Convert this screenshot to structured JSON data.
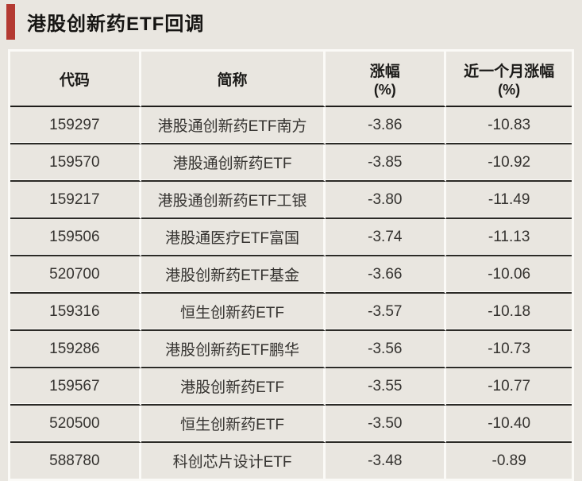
{
  "title": "港股创新药ETF回调",
  "colors": {
    "accent_bar": "#b43a32",
    "background": "#e9e6e0",
    "divider_white": "#fbfaf7",
    "row_rule": "#2b2a26",
    "text": "#353330"
  },
  "table": {
    "headers": [
      {
        "label": "代码",
        "sub": ""
      },
      {
        "label": "简称",
        "sub": ""
      },
      {
        "label": "涨幅",
        "sub": "(%)"
      },
      {
        "label": "近一个月涨幅",
        "sub": "(%)"
      }
    ]
  },
  "chart_data": {
    "type": "table",
    "title": "港股创新药ETF回调",
    "columns": [
      "代码",
      "简称",
      "涨幅(%)",
      "近一个月涨幅(%)"
    ],
    "rows": [
      [
        "159297",
        "港股通创新药ETF南方",
        "-3.86",
        "-10.83"
      ],
      [
        "159570",
        "港股通创新药ETF",
        "-3.85",
        "-10.92"
      ],
      [
        "159217",
        "港股通创新药ETF工银",
        "-3.80",
        "-11.49"
      ],
      [
        "159506",
        "港股通医疗ETF富国",
        "-3.74",
        "-11.13"
      ],
      [
        "520700",
        "港股创新药ETF基金",
        "-3.66",
        "-10.06"
      ],
      [
        "159316",
        "恒生创新药ETF",
        "-3.57",
        "-10.18"
      ],
      [
        "159286",
        "港股创新药ETF鹏华",
        "-3.56",
        "-10.73"
      ],
      [
        "159567",
        "港股创新药ETF",
        "-3.55",
        "-10.77"
      ],
      [
        "520500",
        "恒生创新药ETF",
        "-3.50",
        "-10.40"
      ],
      [
        "588780",
        "科创芯片设计ETF",
        "-3.48",
        "-0.89"
      ]
    ]
  }
}
